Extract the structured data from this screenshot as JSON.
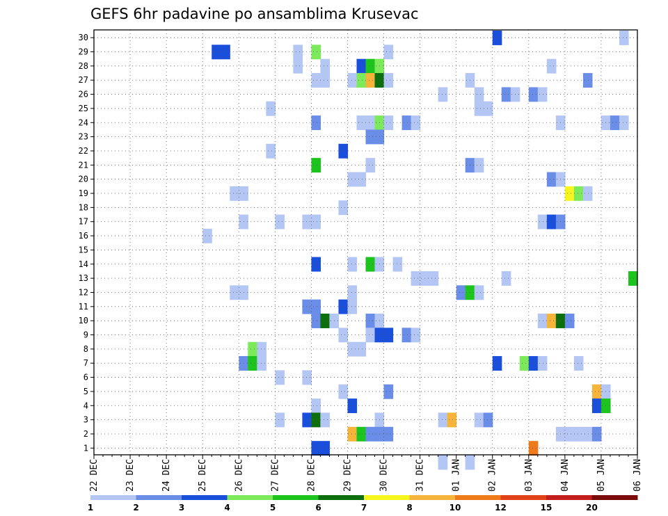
{
  "chart_data": {
    "type": "heatmap",
    "title": "GEFS 6hr padavine po ansamblima Krusevac",
    "xlabel": "",
    "ylabel": "",
    "y_ticks": [
      "1",
      "2",
      "3",
      "4",
      "5",
      "6",
      "7",
      "8",
      "9",
      "10",
      "11",
      "12",
      "13",
      "14",
      "15",
      "16",
      "17",
      "18",
      "19",
      "20",
      "21",
      "22",
      "23",
      "24",
      "25",
      "26",
      "27",
      "28",
      "29",
      "30"
    ],
    "ylim": [
      0.5,
      30.5
    ],
    "x_ticks": [
      "22 DEC",
      "23 DEC",
      "24 DEC",
      "25 DEC",
      "26 DEC",
      "27 DEC",
      "28 DEC",
      "29 DEC",
      "30 DEC",
      "31 DEC",
      "01 JAN",
      "02 JAN",
      "03 JAN",
      "04 JAN",
      "05 JAN",
      "06 JAN"
    ],
    "x_step_hours": 6,
    "grid": true,
    "color_levels": [
      "1",
      "2",
      "3",
      "4",
      "5",
      "6",
      "7",
      "8",
      "10",
      "12",
      "15",
      "20"
    ],
    "level_colors": [
      "#b4c6f4",
      "#6a8ee8",
      "#1a4fdc",
      "#7cea5a",
      "#1ec41e",
      "#0c6e0c",
      "#f6f61e",
      "#f6b43a",
      "#ee7a1a",
      "#e2421a",
      "#c41e1e",
      "#7a0c0c"
    ],
    "cells": [
      {
        "member": 30,
        "step": 44,
        "level": 2
      },
      {
        "member": 30,
        "step": 58,
        "level": 0
      },
      {
        "member": 29,
        "step": 13,
        "level": 2
      },
      {
        "member": 29,
        "step": 14,
        "level": 2
      },
      {
        "member": 29,
        "step": 22,
        "level": 0
      },
      {
        "member": 29,
        "step": 24,
        "level": 3
      },
      {
        "member": 29,
        "step": 32,
        "level": 0
      },
      {
        "member": 28,
        "step": 22,
        "level": 0
      },
      {
        "member": 28,
        "step": 25,
        "level": 0
      },
      {
        "member": 28,
        "step": 29,
        "level": 2
      },
      {
        "member": 28,
        "step": 30,
        "level": 4
      },
      {
        "member": 28,
        "step": 31,
        "level": 3
      },
      {
        "member": 28,
        "step": 50,
        "level": 0
      },
      {
        "member": 27,
        "step": 24,
        "level": 0
      },
      {
        "member": 27,
        "step": 25,
        "level": 0
      },
      {
        "member": 27,
        "step": 28,
        "level": 0
      },
      {
        "member": 27,
        "step": 29,
        "level": 3
      },
      {
        "member": 27,
        "step": 30,
        "level": 7
      },
      {
        "member": 27,
        "step": 31,
        "level": 5
      },
      {
        "member": 27,
        "step": 32,
        "level": 0
      },
      {
        "member": 27,
        "step": 41,
        "level": 0
      },
      {
        "member": 27,
        "step": 54,
        "level": 1
      },
      {
        "member": 26,
        "step": 38,
        "level": 0
      },
      {
        "member": 26,
        "step": 42,
        "level": 0
      },
      {
        "member": 26,
        "step": 45,
        "level": 1
      },
      {
        "member": 26,
        "step": 46,
        "level": 0
      },
      {
        "member": 26,
        "step": 48,
        "level": 1
      },
      {
        "member": 26,
        "step": 49,
        "level": 0
      },
      {
        "member": 25,
        "step": 19,
        "level": 0
      },
      {
        "member": 25,
        "step": 42,
        "level": 0
      },
      {
        "member": 25,
        "step": 43,
        "level": 0
      },
      {
        "member": 24,
        "step": 24,
        "level": 1
      },
      {
        "member": 24,
        "step": 29,
        "level": 0
      },
      {
        "member": 24,
        "step": 30,
        "level": 0
      },
      {
        "member": 24,
        "step": 31,
        "level": 3
      },
      {
        "member": 24,
        "step": 32,
        "level": 0
      },
      {
        "member": 24,
        "step": 34,
        "level": 1
      },
      {
        "member": 24,
        "step": 35,
        "level": 0
      },
      {
        "member": 24,
        "step": 51,
        "level": 0
      },
      {
        "member": 24,
        "step": 56,
        "level": 0
      },
      {
        "member": 24,
        "step": 57,
        "level": 1
      },
      {
        "member": 24,
        "step": 58,
        "level": 0
      },
      {
        "member": 23,
        "step": 30,
        "level": 1
      },
      {
        "member": 23,
        "step": 31,
        "level": 1
      },
      {
        "member": 22,
        "step": 19,
        "level": 0
      },
      {
        "member": 22,
        "step": 27,
        "level": 2
      },
      {
        "member": 21,
        "step": 24,
        "level": 4
      },
      {
        "member": 21,
        "step": 30,
        "level": 0
      },
      {
        "member": 21,
        "step": 41,
        "level": 1
      },
      {
        "member": 21,
        "step": 42,
        "level": 0
      },
      {
        "member": 20,
        "step": 28,
        "level": 0
      },
      {
        "member": 20,
        "step": 29,
        "level": 0
      },
      {
        "member": 20,
        "step": 50,
        "level": 1
      },
      {
        "member": 20,
        "step": 51,
        "level": 0
      },
      {
        "member": 19,
        "step": 15,
        "level": 0
      },
      {
        "member": 19,
        "step": 16,
        "level": 0
      },
      {
        "member": 19,
        "step": 52,
        "level": 6
      },
      {
        "member": 19,
        "step": 53,
        "level": 3
      },
      {
        "member": 19,
        "step": 54,
        "level": 0
      },
      {
        "member": 18,
        "step": 27,
        "level": 0
      },
      {
        "member": 17,
        "step": 16,
        "level": 0
      },
      {
        "member": 17,
        "step": 20,
        "level": 0
      },
      {
        "member": 17,
        "step": 23,
        "level": 0
      },
      {
        "member": 17,
        "step": 24,
        "level": 0
      },
      {
        "member": 17,
        "step": 49,
        "level": 0
      },
      {
        "member": 17,
        "step": 50,
        "level": 2
      },
      {
        "member": 17,
        "step": 51,
        "level": 1
      },
      {
        "member": 16,
        "step": 12,
        "level": 0
      },
      {
        "member": 14,
        "step": 24,
        "level": 2
      },
      {
        "member": 14,
        "step": 28,
        "level": 0
      },
      {
        "member": 14,
        "step": 30,
        "level": 4
      },
      {
        "member": 14,
        "step": 31,
        "level": 0
      },
      {
        "member": 14,
        "step": 33,
        "level": 0
      },
      {
        "member": 13,
        "step": 35,
        "level": 0
      },
      {
        "member": 13,
        "step": 36,
        "level": 0
      },
      {
        "member": 13,
        "step": 37,
        "level": 0
      },
      {
        "member": 13,
        "step": 45,
        "level": 0
      },
      {
        "member": 13,
        "step": 59,
        "level": 4
      },
      {
        "member": 12,
        "step": 15,
        "level": 0
      },
      {
        "member": 12,
        "step": 16,
        "level": 0
      },
      {
        "member": 12,
        "step": 28,
        "level": 0
      },
      {
        "member": 12,
        "step": 40,
        "level": 1
      },
      {
        "member": 12,
        "step": 41,
        "level": 4
      },
      {
        "member": 12,
        "step": 42,
        "level": 0
      },
      {
        "member": 11,
        "step": 23,
        "level": 1
      },
      {
        "member": 11,
        "step": 24,
        "level": 1
      },
      {
        "member": 11,
        "step": 27,
        "level": 2
      },
      {
        "member": 11,
        "step": 28,
        "level": 0
      },
      {
        "member": 10,
        "step": 24,
        "level": 1
      },
      {
        "member": 10,
        "step": 25,
        "level": 5
      },
      {
        "member": 10,
        "step": 26,
        "level": 0
      },
      {
        "member": 10,
        "step": 30,
        "level": 1
      },
      {
        "member": 10,
        "step": 31,
        "level": 0
      },
      {
        "member": 10,
        "step": 49,
        "level": 0
      },
      {
        "member": 10,
        "step": 50,
        "level": 7
      },
      {
        "member": 10,
        "step": 51,
        "level": 5
      },
      {
        "member": 10,
        "step": 52,
        "level": 1
      },
      {
        "member": 9,
        "step": 27,
        "level": 0
      },
      {
        "member": 9,
        "step": 30,
        "level": 0
      },
      {
        "member": 9,
        "step": 31,
        "level": 2
      },
      {
        "member": 9,
        "step": 32,
        "level": 2
      },
      {
        "member": 9,
        "step": 34,
        "level": 1
      },
      {
        "member": 9,
        "step": 35,
        "level": 0
      },
      {
        "member": 8,
        "step": 17,
        "level": 3
      },
      {
        "member": 8,
        "step": 18,
        "level": 0
      },
      {
        "member": 8,
        "step": 28,
        "level": 0
      },
      {
        "member": 8,
        "step": 29,
        "level": 0
      },
      {
        "member": 7,
        "step": 16,
        "level": 1
      },
      {
        "member": 7,
        "step": 17,
        "level": 4
      },
      {
        "member": 7,
        "step": 18,
        "level": 0
      },
      {
        "member": 7,
        "step": 44,
        "level": 2
      },
      {
        "member": 7,
        "step": 47,
        "level": 3
      },
      {
        "member": 7,
        "step": 48,
        "level": 2
      },
      {
        "member": 7,
        "step": 49,
        "level": 0
      },
      {
        "member": 7,
        "step": 53,
        "level": 0
      },
      {
        "member": 6,
        "step": 20,
        "level": 0
      },
      {
        "member": 6,
        "step": 23,
        "level": 0
      },
      {
        "member": 5,
        "step": 27,
        "level": 0
      },
      {
        "member": 5,
        "step": 32,
        "level": 1
      },
      {
        "member": 5,
        "step": 55,
        "level": 7
      },
      {
        "member": 5,
        "step": 56,
        "level": 0
      },
      {
        "member": 4,
        "step": 24,
        "level": 0
      },
      {
        "member": 4,
        "step": 28,
        "level": 2
      },
      {
        "member": 4,
        "step": 55,
        "level": 2
      },
      {
        "member": 4,
        "step": 56,
        "level": 4
      },
      {
        "member": 3,
        "step": 20,
        "level": 0
      },
      {
        "member": 3,
        "step": 23,
        "level": 2
      },
      {
        "member": 3,
        "step": 24,
        "level": 5
      },
      {
        "member": 3,
        "step": 25,
        "level": 0
      },
      {
        "member": 3,
        "step": 31,
        "level": 0
      },
      {
        "member": 3,
        "step": 38,
        "level": 0
      },
      {
        "member": 3,
        "step": 39,
        "level": 7
      },
      {
        "member": 3,
        "step": 42,
        "level": 0
      },
      {
        "member": 3,
        "step": 43,
        "level": 1
      },
      {
        "member": 2,
        "step": 28,
        "level": 7
      },
      {
        "member": 2,
        "step": 29,
        "level": 4
      },
      {
        "member": 2,
        "step": 30,
        "level": 1
      },
      {
        "member": 2,
        "step": 31,
        "level": 1
      },
      {
        "member": 2,
        "step": 32,
        "level": 1
      },
      {
        "member": 2,
        "step": 51,
        "level": 0
      },
      {
        "member": 2,
        "step": 52,
        "level": 0
      },
      {
        "member": 2,
        "step": 53,
        "level": 0
      },
      {
        "member": 2,
        "step": 54,
        "level": 0
      },
      {
        "member": 2,
        "step": 55,
        "level": 1
      },
      {
        "member": 1,
        "step": 24,
        "level": 2
      },
      {
        "member": 1,
        "step": 25,
        "level": 2
      },
      {
        "member": 1,
        "step": 48,
        "level": 8
      },
      {
        "member": 0,
        "step": 38,
        "level": 0
      },
      {
        "member": 0,
        "step": 41,
        "level": 0
      }
    ]
  }
}
